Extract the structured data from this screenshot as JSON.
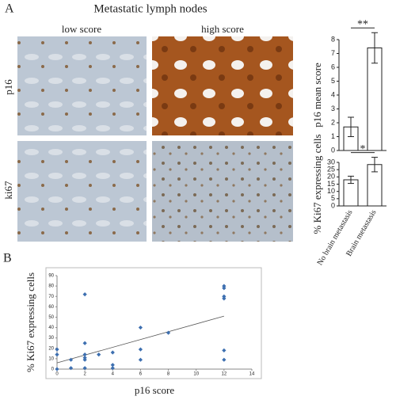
{
  "figure": {
    "panel_a_label": "A",
    "panel_a_title": "Metastatic lymph nodes",
    "columns": [
      "low score",
      "high score"
    ],
    "rows": [
      "p16",
      "ki67"
    ],
    "panel_b_label": "B"
  },
  "chart_data": [
    {
      "type": "bar",
      "y_label": "p16 mean score",
      "categories": [
        null,
        null
      ],
      "values": [
        1.7,
        7.4
      ],
      "errors": [
        0.7,
        1.1
      ],
      "significance": "**",
      "color": "#ffffff",
      "ylim": [
        0,
        8
      ],
      "yticks": [
        0,
        1,
        2,
        3,
        4,
        5,
        6,
        7,
        8
      ]
    },
    {
      "type": "bar",
      "y_label": "% Ki67 expressing cells",
      "categories": [
        "No brain metastasis",
        "Brain metastasis"
      ],
      "values": [
        18,
        28.5
      ],
      "errors": [
        2.5,
        5
      ],
      "significance": "*",
      "color": "#ffffff",
      "ylim": [
        0,
        30
      ],
      "yticks": [
        0,
        5,
        10,
        15,
        20,
        25,
        30
      ]
    },
    {
      "type": "scatter",
      "x_label": "p16 score",
      "y_label": "% Ki67 expressing cells",
      "color": "#3d6fb0",
      "x": [
        0,
        0,
        0,
        1,
        1,
        2,
        2,
        2,
        2,
        2,
        2,
        3,
        4,
        4,
        4,
        6,
        6,
        6,
        8,
        12,
        12,
        12,
        12,
        12,
        12
      ],
      "values": [
        0,
        14,
        19,
        1,
        9,
        72,
        25,
        14,
        11,
        1,
        9,
        14,
        16,
        4,
        1,
        40,
        19,
        9,
        35,
        80,
        78,
        70,
        68,
        18,
        9
      ],
      "trendline": {
        "x": [
          0,
          12
        ],
        "values": [
          6,
          51
        ]
      },
      "xlim": [
        0,
        14
      ],
      "xticks": [
        0,
        2,
        4,
        6,
        8,
        10,
        12,
        14
      ],
      "ylim": [
        0,
        90
      ],
      "yticks": [
        0,
        10,
        20,
        30,
        40,
        50,
        60,
        70,
        80,
        90
      ]
    }
  ]
}
